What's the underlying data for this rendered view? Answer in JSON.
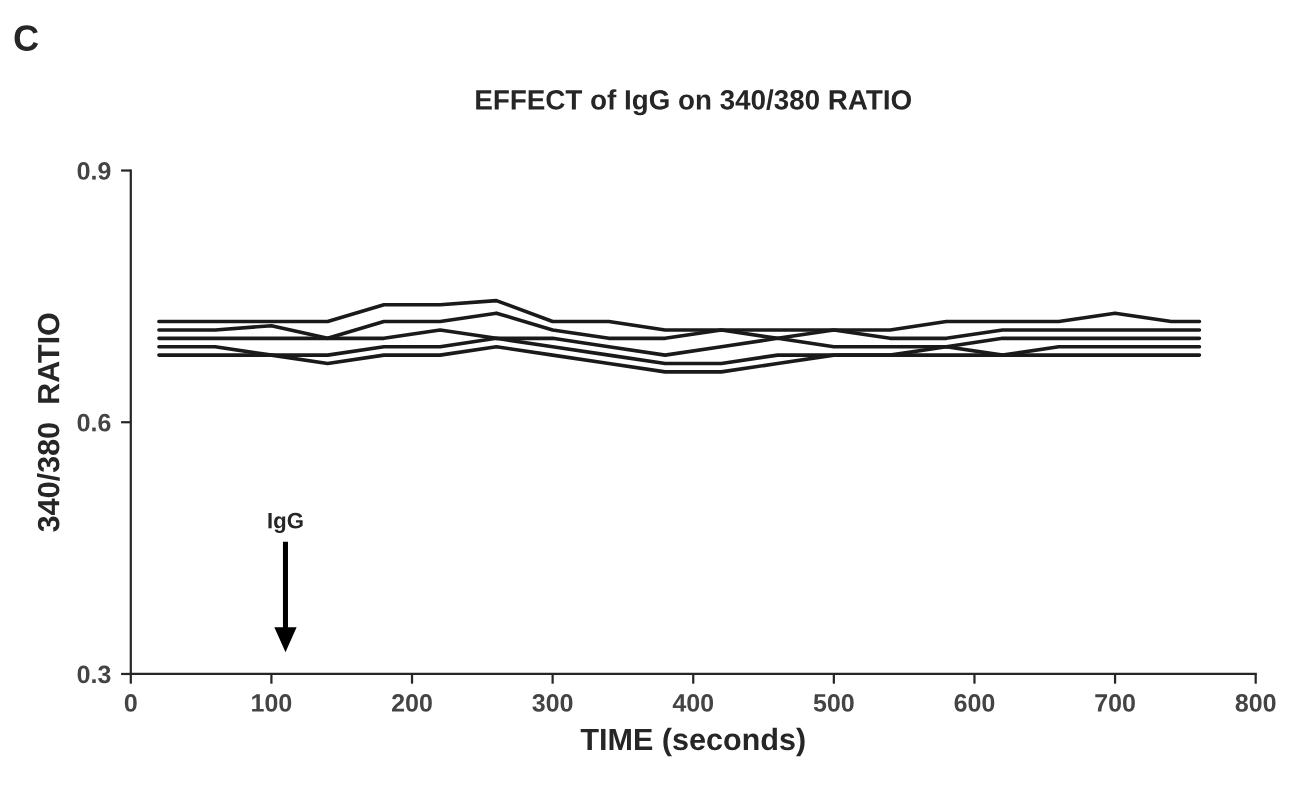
{
  "chart_data": {
    "type": "line",
    "title": "EFFECT of IgG on 340/380 RATIO",
    "xlabel": "TIME (seconds)",
    "ylabel": "340/380  RATIO",
    "x": [
      20,
      60,
      100,
      140,
      180,
      220,
      260,
      300,
      340,
      380,
      420,
      460,
      500,
      540,
      580,
      620,
      660,
      700,
      740,
      760
    ],
    "series": [
      {
        "color": "#1a1a1a",
        "values": [
          0.72,
          0.72,
          0.72,
          0.72,
          0.74,
          0.74,
          0.745,
          0.72,
          0.72,
          0.71,
          0.71,
          0.71,
          0.71,
          0.71,
          0.72,
          0.72,
          0.72,
          0.73,
          0.72,
          0.72
        ]
      },
      {
        "color": "#1a1a1a",
        "values": [
          0.71,
          0.71,
          0.715,
          0.7,
          0.72,
          0.72,
          0.73,
          0.71,
          0.7,
          0.7,
          0.71,
          0.7,
          0.71,
          0.7,
          0.7,
          0.71,
          0.71,
          0.71,
          0.71,
          0.71
        ]
      },
      {
        "color": "#1a1a1a",
        "values": [
          0.7,
          0.7,
          0.7,
          0.7,
          0.7,
          0.71,
          0.7,
          0.7,
          0.69,
          0.68,
          0.69,
          0.7,
          0.69,
          0.69,
          0.69,
          0.7,
          0.7,
          0.7,
          0.7,
          0.7
        ]
      },
      {
        "color": "#1a1a1a",
        "values": [
          0.69,
          0.69,
          0.68,
          0.68,
          0.69,
          0.69,
          0.7,
          0.69,
          0.68,
          0.67,
          0.67,
          0.68,
          0.68,
          0.68,
          0.69,
          0.68,
          0.69,
          0.69,
          0.69,
          0.69
        ]
      },
      {
        "color": "#1a1a1a",
        "values": [
          0.68,
          0.68,
          0.68,
          0.67,
          0.68,
          0.68,
          0.69,
          0.68,
          0.67,
          0.66,
          0.66,
          0.67,
          0.68,
          0.68,
          0.68,
          0.68,
          0.68,
          0.68,
          0.68,
          0.68
        ]
      }
    ],
    "xlim": [
      0,
      800
    ],
    "xticks": [
      0,
      100,
      200,
      300,
      400,
      500,
      600,
      700,
      800
    ],
    "ylim": [
      0.3,
      0.9
    ],
    "yticks": [
      0.3,
      0.6,
      0.9
    ],
    "annotations": [
      "C",
      "IgG"
    ],
    "grid": false,
    "legend": false,
    "marker": "none",
    "line_style": "solid"
  }
}
